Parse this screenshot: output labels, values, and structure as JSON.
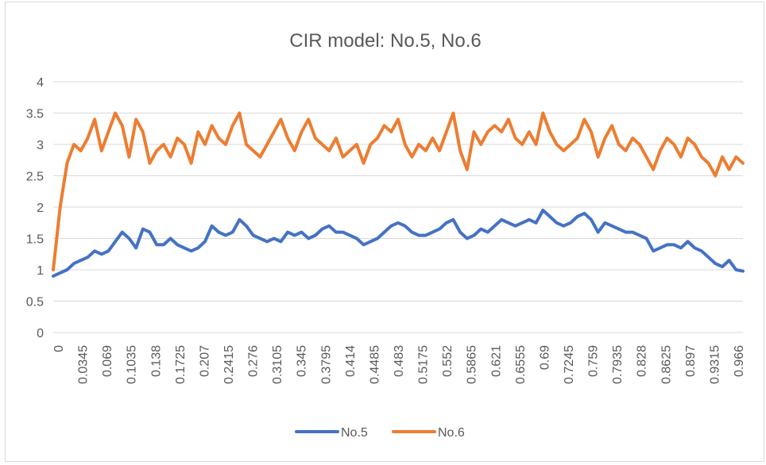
{
  "chart_data": {
    "type": "line",
    "title": "CIR model: No.5, No.6",
    "xlabel": "",
    "ylabel": "",
    "ylim": [
      0,
      4
    ],
    "y_ticks": [
      "0",
      "0.5",
      "1",
      "1.5",
      "2",
      "2.5",
      "3",
      "3.5",
      "4"
    ],
    "x_tick_labels": [
      "0",
      "0.0345",
      "0.069",
      "0.1035",
      "0.138",
      "0.1725",
      "0.207",
      "0.2415",
      "0.276",
      "0.3105",
      "0.345",
      "0.3795",
      "0.414",
      "0.4485",
      "0.483",
      "0.5175",
      "0.552",
      "0.5865",
      "0.621",
      "0.6555",
      "0.69",
      "0.7245",
      "0.759",
      "0.7935",
      "0.828",
      "0.8625",
      "0.897",
      "0.9315",
      "0.966"
    ],
    "grid": "horizontal",
    "legend_position": "bottom",
    "x": [
      0,
      0.01,
      0.02,
      0.03,
      0.04,
      0.05,
      0.06,
      0.07,
      0.08,
      0.09,
      0.1,
      0.11,
      0.12,
      0.13,
      0.14,
      0.15,
      0.16,
      0.17,
      0.18,
      0.19,
      0.2,
      0.21,
      0.22,
      0.23,
      0.24,
      0.25,
      0.26,
      0.27,
      0.28,
      0.29,
      0.3,
      0.31,
      0.32,
      0.33,
      0.34,
      0.35,
      0.36,
      0.37,
      0.38,
      0.39,
      0.4,
      0.41,
      0.42,
      0.43,
      0.44,
      0.45,
      0.46,
      0.47,
      0.48,
      0.49,
      0.5,
      0.51,
      0.52,
      0.53,
      0.54,
      0.55,
      0.56,
      0.57,
      0.58,
      0.59,
      0.6,
      0.61,
      0.62,
      0.63,
      0.64,
      0.65,
      0.66,
      0.67,
      0.68,
      0.69,
      0.7,
      0.71,
      0.72,
      0.73,
      0.74,
      0.75,
      0.76,
      0.77,
      0.78,
      0.79,
      0.8,
      0.81,
      0.82,
      0.83,
      0.84,
      0.85,
      0.86,
      0.87,
      0.88,
      0.89,
      0.9,
      0.91,
      0.92,
      0.93,
      0.94,
      0.95,
      0.96,
      0.97,
      0.98,
      0.99,
      1.0
    ],
    "series": [
      {
        "name": "No.5",
        "color": "#4472C4",
        "values": [
          0.9,
          0.95,
          1.0,
          1.1,
          1.15,
          1.2,
          1.3,
          1.25,
          1.3,
          1.45,
          1.6,
          1.5,
          1.35,
          1.65,
          1.6,
          1.4,
          1.4,
          1.5,
          1.4,
          1.35,
          1.3,
          1.35,
          1.45,
          1.7,
          1.6,
          1.55,
          1.6,
          1.8,
          1.7,
          1.55,
          1.5,
          1.45,
          1.5,
          1.45,
          1.6,
          1.55,
          1.6,
          1.5,
          1.55,
          1.65,
          1.7,
          1.6,
          1.6,
          1.55,
          1.5,
          1.4,
          1.45,
          1.5,
          1.6,
          1.7,
          1.75,
          1.7,
          1.6,
          1.55,
          1.55,
          1.6,
          1.65,
          1.75,
          1.8,
          1.6,
          1.5,
          1.55,
          1.65,
          1.6,
          1.7,
          1.8,
          1.75,
          1.7,
          1.75,
          1.8,
          1.75,
          1.95,
          1.85,
          1.75,
          1.7,
          1.75,
          1.85,
          1.9,
          1.8,
          1.6,
          1.75,
          1.7,
          1.65,
          1.6,
          1.6,
          1.55,
          1.5,
          1.3,
          1.35,
          1.4,
          1.4,
          1.35,
          1.45,
          1.35,
          1.3,
          1.2,
          1.1,
          1.05,
          1.15,
          1.0,
          0.98
        ]
      },
      {
        "name": "No.6",
        "color": "#ED7D31",
        "values": [
          1.0,
          2.0,
          2.7,
          3.0,
          2.9,
          3.1,
          3.4,
          2.9,
          3.2,
          3.5,
          3.3,
          2.8,
          3.4,
          3.2,
          2.7,
          2.9,
          3.0,
          2.8,
          3.1,
          3.0,
          2.7,
          3.2,
          3.0,
          3.3,
          3.1,
          3.0,
          3.3,
          3.5,
          3.0,
          2.9,
          2.8,
          3.0,
          3.2,
          3.4,
          3.1,
          2.9,
          3.2,
          3.4,
          3.1,
          3.0,
          2.9,
          3.1,
          2.8,
          2.9,
          3.0,
          2.7,
          3.0,
          3.1,
          3.3,
          3.2,
          3.4,
          3.0,
          2.8,
          3.0,
          2.9,
          3.1,
          2.9,
          3.2,
          3.5,
          2.9,
          2.6,
          3.2,
          3.0,
          3.2,
          3.3,
          3.2,
          3.4,
          3.1,
          3.0,
          3.2,
          3.0,
          3.5,
          3.2,
          3.0,
          2.9,
          3.0,
          3.1,
          3.4,
          3.2,
          2.8,
          3.1,
          3.3,
          3.0,
          2.9,
          3.1,
          3.0,
          2.8,
          2.6,
          2.9,
          3.1,
          3.0,
          2.8,
          3.1,
          3.0,
          2.8,
          2.7,
          2.5,
          2.8,
          2.6,
          2.8,
          2.7
        ]
      }
    ]
  }
}
